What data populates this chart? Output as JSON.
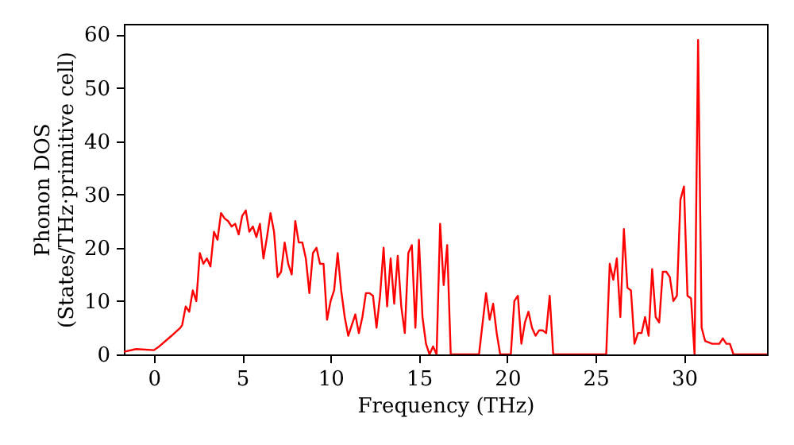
{
  "chart_data": {
    "type": "line",
    "xlabel": "Frequency (THz)",
    "ylabel": "Phonon DOS\n(States/THz·primitive cell)",
    "xlim": [
      -1.7,
      34.7
    ],
    "ylim": [
      0,
      62
    ],
    "xticks": [
      0,
      5,
      10,
      15,
      20,
      25,
      30
    ],
    "yticks": [
      0,
      10,
      20,
      30,
      40,
      50,
      60
    ],
    "grid": false,
    "marker": "none",
    "line_style": "solid",
    "series": [
      {
        "color": "#ff0000",
        "x": [
          -1.7,
          -1,
          0,
          0.3,
          1,
          1.5,
          1.6,
          1.8,
          2,
          2.2,
          2.4,
          2.6,
          2.8,
          3,
          3.2,
          3.4,
          3.6,
          3.8,
          4,
          4.2,
          4.4,
          4.6,
          4.8,
          5,
          5.2,
          5.4,
          5.6,
          5.8,
          6,
          6.2,
          6.4,
          6.6,
          6.8,
          7,
          7.2,
          7.4,
          7.6,
          7.8,
          8,
          8.2,
          8.4,
          8.6,
          8.8,
          9,
          9.2,
          9.4,
          9.6,
          9.8,
          10,
          10.2,
          10.4,
          10.6,
          10.8,
          11,
          11.2,
          11.4,
          11.6,
          11.8,
          12,
          12.2,
          12.4,
          12.6,
          12.8,
          13,
          13.2,
          13.4,
          13.6,
          13.8,
          14,
          14.2,
          14.4,
          14.6,
          14.8,
          15,
          15.2,
          15.4,
          15.6,
          15.8,
          16,
          16.2,
          16.4,
          16.6,
          16.8,
          18.4,
          18.8,
          19,
          19.2,
          19.4,
          19.6,
          20.2,
          20.4,
          20.6,
          20.8,
          21,
          21.2,
          21.4,
          21.6,
          21.8,
          22,
          22.2,
          22.4,
          22.6,
          25.6,
          25.8,
          26,
          26.2,
          26.4,
          26.6,
          26.8,
          27,
          27.2,
          27.4,
          27.6,
          27.8,
          28,
          28.2,
          28.4,
          28.6,
          28.8,
          29,
          29.2,
          29.4,
          29.6,
          29.8,
          30,
          30.2,
          30.4,
          30.6,
          30.8,
          31,
          31.2,
          31.6,
          32,
          32.2,
          32.4,
          32.6,
          32.8,
          34.7
        ],
        "values": [
          0.5,
          1,
          0.8,
          1.5,
          3.5,
          5,
          5.5,
          9,
          8,
          12,
          10,
          19,
          17,
          18,
          16.5,
          23,
          21.5,
          26.5,
          25.5,
          25,
          24,
          24.5,
          22.5,
          26,
          27,
          23,
          24,
          22,
          24.5,
          18,
          22,
          26.5,
          23,
          14.5,
          15.5,
          21,
          17,
          15,
          25,
          21,
          21,
          18,
          11.5,
          19,
          20,
          17,
          17,
          6.5,
          10,
          12,
          19,
          12,
          7,
          3.5,
          5.5,
          7.5,
          4,
          7,
          11.5,
          11.5,
          11,
          5,
          11,
          20,
          9,
          18,
          9.5,
          18.5,
          9,
          4,
          19,
          20.5,
          5,
          21.5,
          7,
          2,
          0,
          1.5,
          0,
          24.5,
          13,
          20.5,
          0,
          0,
          11.5,
          6.5,
          9.5,
          4,
          0,
          0,
          10,
          11,
          2,
          6,
          8,
          5,
          3.5,
          4.5,
          4.5,
          4,
          11,
          0,
          0,
          17,
          14,
          18,
          7,
          23.5,
          12.5,
          12,
          2,
          4,
          4,
          7,
          3.5,
          16,
          7,
          6,
          15.5,
          15.5,
          14.5,
          10,
          11,
          29,
          31.5,
          11,
          10.5,
          0,
          59,
          5,
          2.5,
          2,
          2,
          3,
          2,
          2,
          0,
          0
        ]
      }
    ]
  }
}
